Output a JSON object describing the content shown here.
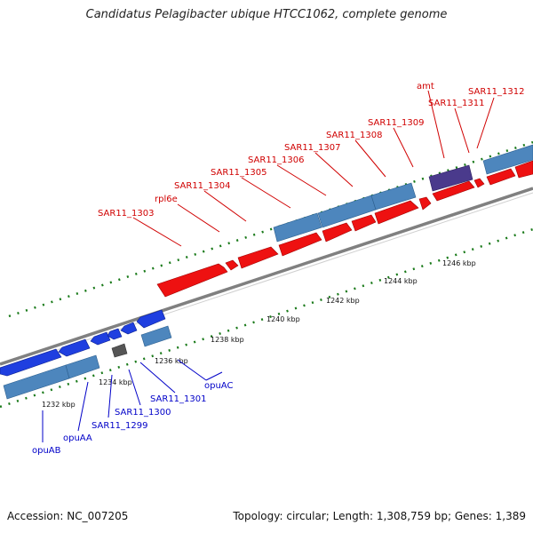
{
  "title": "Candidatus Pelagibacter ubique HTCC1062, complete genome",
  "footer": {
    "accession": "Accession: NC_007205",
    "stats": "Topology: circular; Length: 1,308,759 bp; Genes: 1,389"
  },
  "colors": {
    "backbone": "#808080",
    "forward_gene": "#ee1111",
    "reverse_gene": "#1f3fe0",
    "cds_track": "#4d86bd",
    "misc_feature": "#4a3a8c",
    "other_feature": "#555555",
    "tick": "#1a7a1a",
    "forward_label": "#d00000",
    "reverse_label": "#0000c8"
  },
  "ticks": [
    {
      "label": "1232 kbp"
    },
    {
      "label": "1234 kbp"
    },
    {
      "label": "1236 kbp"
    },
    {
      "label": "1238 kbp"
    },
    {
      "label": "1240 kbp"
    },
    {
      "label": "1242 kbp"
    },
    {
      "label": "1244 kbp"
    },
    {
      "label": "1246 kbp"
    }
  ],
  "forward_labels": [
    {
      "name": "SAR11_1303"
    },
    {
      "name": "rpl6e"
    },
    {
      "name": "SAR11_1304"
    },
    {
      "name": "SAR11_1305"
    },
    {
      "name": "SAR11_1306"
    },
    {
      "name": "SAR11_1307"
    },
    {
      "name": "SAR11_1308"
    },
    {
      "name": "SAR11_1309"
    },
    {
      "name": "amt"
    },
    {
      "name": "SAR11_1311"
    },
    {
      "name": "SAR11_1312"
    }
  ],
  "reverse_labels": [
    {
      "name": "opuAB"
    },
    {
      "name": "opuAA"
    },
    {
      "name": "SAR11_1299"
    },
    {
      "name": "SAR11_1300"
    },
    {
      "name": "SAR11_1301"
    },
    {
      "name": "opuAC"
    }
  ]
}
